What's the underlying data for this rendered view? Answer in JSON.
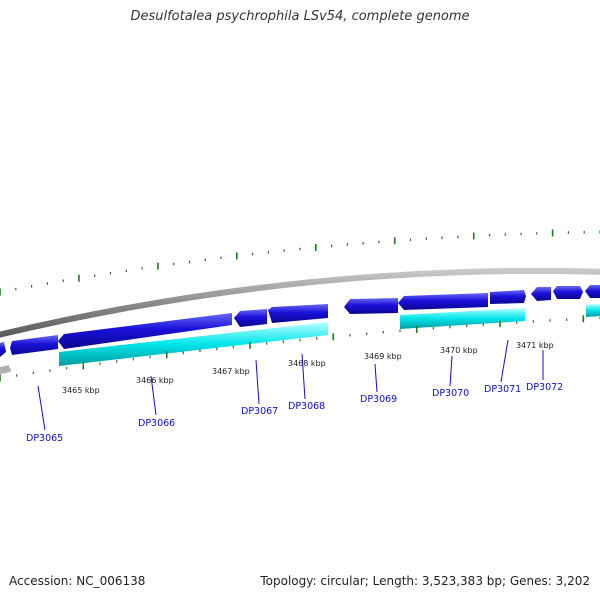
{
  "title": "Desulfotalea psychrophila LSv54, complete genome",
  "footer": {
    "accession": "Accession: NC_006138",
    "summary": "Topology: circular; Length: 3,523,383 bp; Genes: 3,202"
  },
  "kbp_labels": [
    "3465 kbp",
    "3466 kbp",
    "3467 kbp",
    "3468 kbp",
    "3469 kbp",
    "3470 kbp",
    "3471 kbp"
  ],
  "gene_labels": [
    "DP3065",
    "DP3066",
    "DP3067",
    "DP3068",
    "DP3069",
    "DP3070",
    "DP3071",
    "DP3072"
  ],
  "colors": {
    "gene_dark": "#1a10d8",
    "gene_light": "#00e6ea",
    "backbone": "#8a8a8a",
    "ticks": "#1c7a1c",
    "label_text": "#1010cc"
  }
}
